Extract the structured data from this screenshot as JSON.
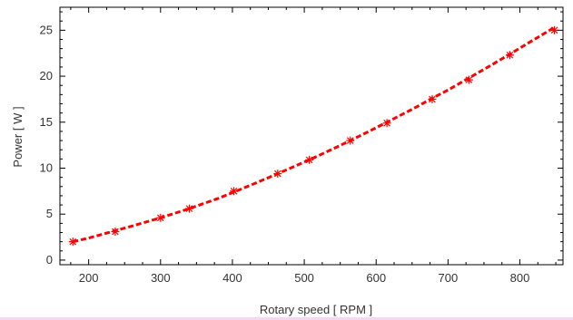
{
  "chart_data": {
    "type": "scatter",
    "xlabel": "Rotary speed [ RPM ]",
    "ylabel": "Power [ W ]",
    "xlim": [
      160,
      860
    ],
    "ylim": [
      -0.5,
      27.5
    ],
    "x_ticks": [
      200,
      300,
      400,
      500,
      600,
      700,
      800
    ],
    "y_ticks": [
      0,
      5,
      10,
      15,
      20,
      25
    ],
    "grid": false,
    "series": [
      {
        "kind": "points",
        "marker": "asterisk",
        "color": "#ff0000",
        "x": [
          178,
          237,
          300,
          340,
          402,
          463,
          507,
          564,
          615,
          678,
          729,
          786,
          848
        ],
        "y": [
          2.0,
          3.1,
          4.6,
          5.6,
          7.5,
          9.4,
          10.9,
          13.0,
          14.9,
          17.5,
          19.6,
          22.3,
          25.0
        ]
      },
      {
        "kind": "fit-line",
        "style": "dashed",
        "color": "#ff0000",
        "x": [
          178,
          200,
          237,
          260,
          300,
          340,
          380,
          402,
          430,
          463,
          507,
          540,
          564,
          590,
          615,
          650,
          678,
          700,
          729,
          760,
          786,
          820,
          848
        ],
        "y": [
          2.0,
          2.4,
          3.2,
          3.7,
          4.6,
          5.6,
          6.7,
          7.4,
          8.3,
          9.4,
          10.9,
          12.1,
          13.0,
          14.0,
          15.0,
          16.4,
          17.6,
          18.5,
          19.8,
          21.2,
          22.4,
          24.0,
          25.3
        ]
      }
    ]
  }
}
